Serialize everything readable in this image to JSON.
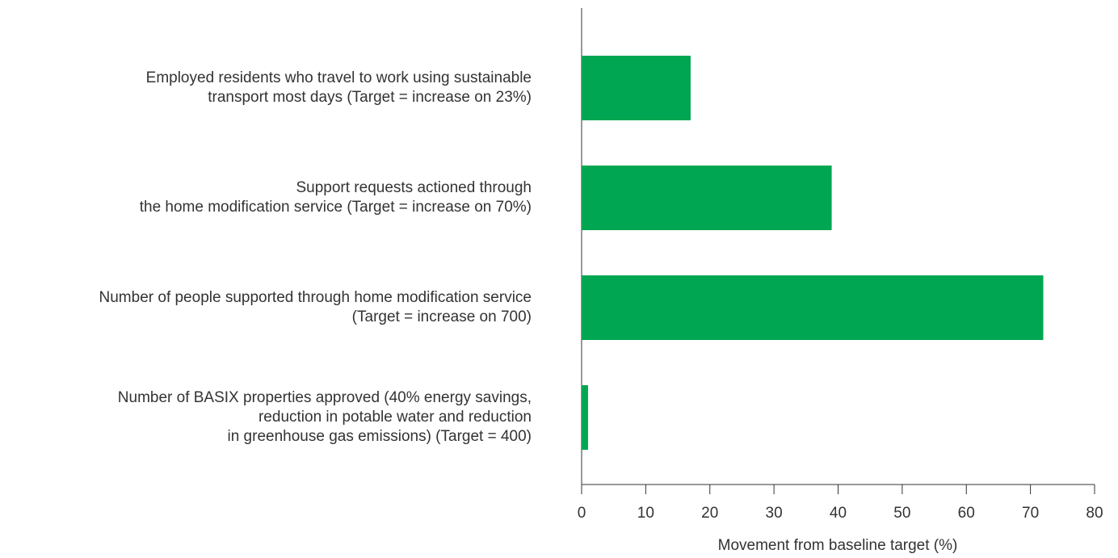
{
  "chart_data": {
    "type": "bar",
    "orientation": "horizontal",
    "categories": [
      "Employed residents who travel to work using sustainable\ntransport most days (Target = increase on 23%)",
      "Support requests actioned through\nthe home modification service (Target = increase on 70%)",
      "Number of people supported through home modification service\n(Target = increase on 700)",
      "Number of BASIX properties approved (40% energy savings,\nreduction in potable water and reduction\nin greenhouse gas emissions) (Target = 400)"
    ],
    "values": [
      17,
      39,
      72,
      1
    ],
    "color": "#00a651",
    "xlabel": "Movement from baseline target (%)",
    "xlim": [
      0,
      80
    ],
    "xticks": [
      0,
      10,
      20,
      30,
      40,
      50,
      60,
      70,
      80
    ],
    "grid": false
  }
}
